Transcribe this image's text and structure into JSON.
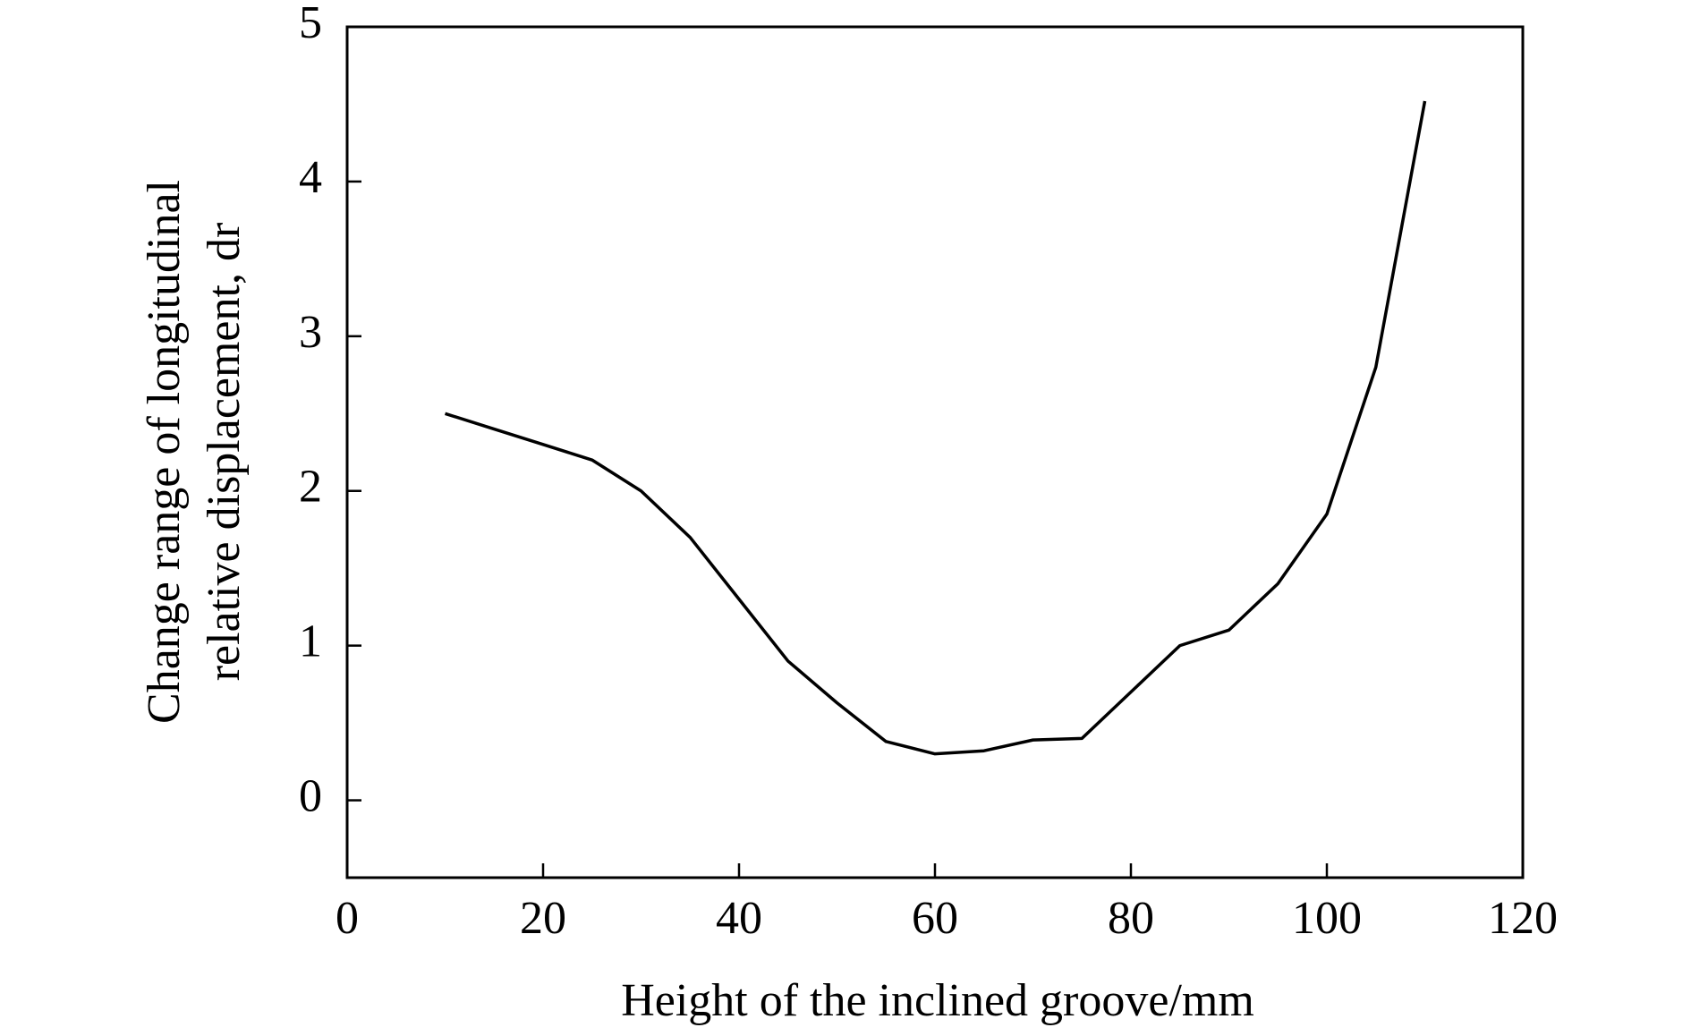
{
  "chart_data": {
    "type": "line",
    "x_label": "Height of the inclined groove/mm",
    "y_label": [
      "Change range of longitudinal",
      "relative displacement, dr"
    ],
    "x": [
      10,
      15,
      20,
      25,
      30,
      35,
      40,
      45,
      50,
      55,
      60,
      65,
      70,
      75,
      80,
      85,
      90,
      95,
      100,
      105,
      110
    ],
    "series": [
      {
        "color": "#000000",
        "values": [
          2.5,
          2.4,
          2.3,
          2.2,
          2.0,
          1.7,
          1.3,
          0.9,
          0.63,
          0.38,
          0.3,
          0.32,
          0.39,
          0.4,
          0.7,
          1.0,
          1.1,
          1.4,
          1.85,
          2.8,
          4.52
        ]
      }
    ],
    "xlim": [
      0,
      120
    ],
    "xticks": [
      0,
      20,
      40,
      60,
      80,
      100,
      120
    ],
    "ylim": [
      -0.5,
      5
    ],
    "yticks": [
      0,
      1,
      2,
      3,
      4,
      5
    ],
    "grid": false
  }
}
